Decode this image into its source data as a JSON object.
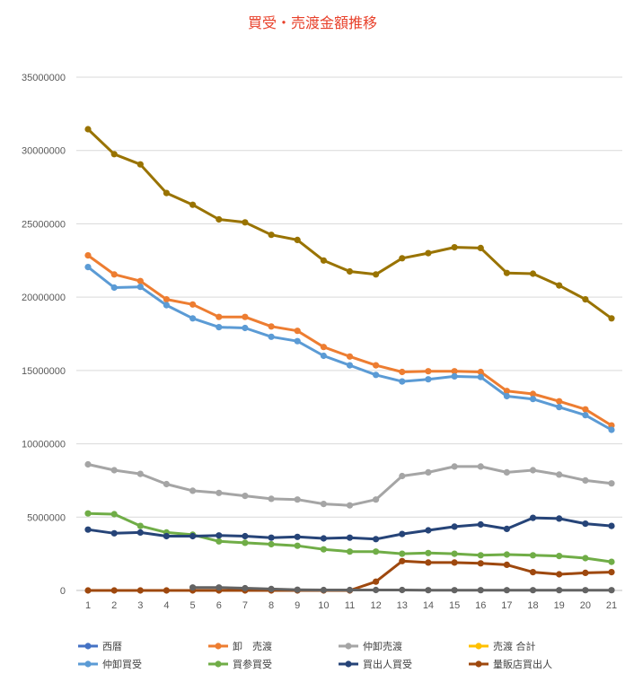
{
  "chart_data": {
    "type": "line",
    "title": "買受・売渡金額推移",
    "title_color": "#e8412b",
    "xlabel": "",
    "ylabel": "",
    "ylim": [
      0,
      35000000
    ],
    "yticks": [
      0,
      5000000,
      10000000,
      15000000,
      20000000,
      25000000,
      30000000,
      35000000
    ],
    "ytick_labels": [
      "0",
      "5000000",
      "10000000",
      "15000000",
      "20000000",
      "25000000",
      "30000000",
      "35000000"
    ],
    "categories": [
      "1",
      "2",
      "3",
      "4",
      "5",
      "6",
      "7",
      "8",
      "9",
      "10",
      "11",
      "12",
      "13",
      "14",
      "15",
      "16",
      "17",
      "18",
      "19",
      "20",
      "21"
    ],
    "grid": true,
    "legend_position": "bottom",
    "series": [
      {
        "name": "西暦",
        "color": "#4472c4",
        "values": [
          null,
          null,
          null,
          null,
          null,
          null,
          null,
          null,
          null,
          null,
          null,
          null,
          null,
          null,
          null,
          null,
          null,
          null,
          null,
          null,
          null
        ]
      },
      {
        "name": "卸　売渡",
        "color": "#ed7d31",
        "values": [
          22850000,
          21550000,
          21100000,
          19850000,
          19500000,
          18650000,
          18650000,
          18000000,
          17700000,
          16600000,
          15950000,
          15350000,
          14900000,
          14950000,
          14950000,
          14900000,
          13600000,
          13400000,
          12900000,
          12350000,
          11250000
        ]
      },
      {
        "name": "仲卸売渡",
        "color": "#a5a5a5",
        "values": [
          8600000,
          8200000,
          7950000,
          7250000,
          6800000,
          6650000,
          6450000,
          6250000,
          6200000,
          5900000,
          5800000,
          6200000,
          7800000,
          8050000,
          8450000,
          8450000,
          8050000,
          8200000,
          7900000,
          7500000,
          7300000
        ]
      },
      {
        "name": "売渡 合計",
        "color": "#ffc000",
        "values": [
          null,
          null,
          null,
          null,
          null,
          null,
          null,
          null,
          null,
          null,
          null,
          null,
          null,
          null,
          null,
          null,
          null,
          null,
          null,
          null,
          null
        ]
      },
      {
        "name": "仲卸買受",
        "color": "#5b9bd5",
        "values": [
          22050000,
          20650000,
          20700000,
          19450000,
          18550000,
          17950000,
          17900000,
          17300000,
          17000000,
          16000000,
          15350000,
          14700000,
          14250000,
          14400000,
          14600000,
          14550000,
          13250000,
          13050000,
          12500000,
          11950000,
          10950000
        ]
      },
      {
        "name": "買参買受",
        "color": "#70ad47",
        "values": [
          5250000,
          5200000,
          4400000,
          3950000,
          3800000,
          3350000,
          3250000,
          3150000,
          3050000,
          2800000,
          2650000,
          2650000,
          2500000,
          2550000,
          2500000,
          2400000,
          2450000,
          2400000,
          2350000,
          2200000,
          1950000
        ]
      },
      {
        "name": "買出人買受",
        "color": "#264478",
        "values": [
          4150000,
          3900000,
          3950000,
          3700000,
          3700000,
          3750000,
          3700000,
          3600000,
          3650000,
          3550000,
          3600000,
          3500000,
          3850000,
          4100000,
          4350000,
          4500000,
          4200000,
          4950000,
          4900000,
          4550000,
          4400000
        ]
      },
      {
        "name": "量販店買出人",
        "color": "#9e480e",
        "values": [
          0,
          0,
          0,
          0,
          0,
          0,
          0,
          0,
          0,
          0,
          0,
          600000,
          2000000,
          1900000,
          1900000,
          1850000,
          1750000,
          1250000,
          1100000,
          1200000,
          1250000
        ]
      },
      {
        "name": "",
        "color": "#636363",
        "legend": false,
        "values": [
          null,
          null,
          null,
          null,
          200000,
          200000,
          150000,
          100000,
          50000,
          30000,
          30000,
          30000,
          30000,
          20000,
          20000,
          20000,
          20000,
          20000,
          20000,
          20000,
          20000
        ]
      },
      {
        "name": "",
        "color": "#997300",
        "legend": false,
        "values": [
          31450000,
          29750000,
          29050000,
          27100000,
          26300000,
          25300000,
          25100000,
          24250000,
          23900000,
          22500000,
          21750000,
          21550000,
          22650000,
          23000000,
          23400000,
          23350000,
          21650000,
          21600000,
          20800000,
          19850000,
          18550000
        ]
      }
    ]
  }
}
